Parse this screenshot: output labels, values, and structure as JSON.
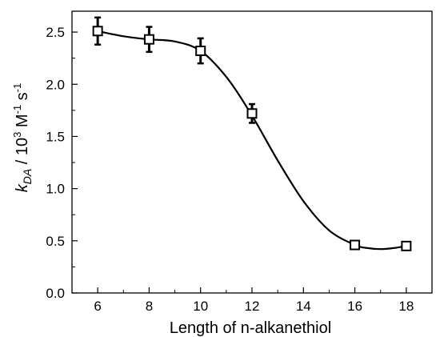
{
  "chart_data": {
    "type": "scatter",
    "xlabel": "Length of n-alkanethiol",
    "ylabel_parts": {
      "k": "k",
      "sub": "DA",
      "mid": " / 10",
      "exp1": "3",
      "unit1": " M",
      "exp2": "-1",
      "unit2": " s",
      "exp3": "-1"
    },
    "xlim": [
      5,
      19
    ],
    "ylim": [
      0.0,
      2.7
    ],
    "xticks": [
      6,
      8,
      10,
      12,
      14,
      16,
      18
    ],
    "xtick_labels": [
      "6",
      "8",
      "10",
      "12",
      "14",
      "16",
      "18"
    ],
    "yticks": [
      0.0,
      0.5,
      1.0,
      1.5,
      2.0,
      2.5
    ],
    "ytick_labels": [
      "0.0",
      "0.5",
      "1.0",
      "1.5",
      "2.0",
      "2.5"
    ],
    "series": [
      {
        "x": [
          6,
          8,
          10,
          12,
          16,
          18
        ],
        "y": [
          2.51,
          2.43,
          2.32,
          1.72,
          0.46,
          0.45
        ],
        "err": [
          0.13,
          0.12,
          0.12,
          0.09,
          0.02,
          0.02
        ],
        "marker": "open-square"
      }
    ],
    "fit_curve": {
      "x": [
        6,
        7,
        8,
        9,
        10,
        11,
        12,
        13,
        14,
        15,
        16,
        16.5,
        17,
        17.5,
        18
      ],
      "y": [
        2.51,
        2.46,
        2.43,
        2.41,
        2.32,
        2.07,
        1.7,
        1.27,
        0.88,
        0.6,
        0.46,
        0.43,
        0.42,
        0.43,
        0.45
      ]
    },
    "grid": false,
    "legend": "none"
  }
}
